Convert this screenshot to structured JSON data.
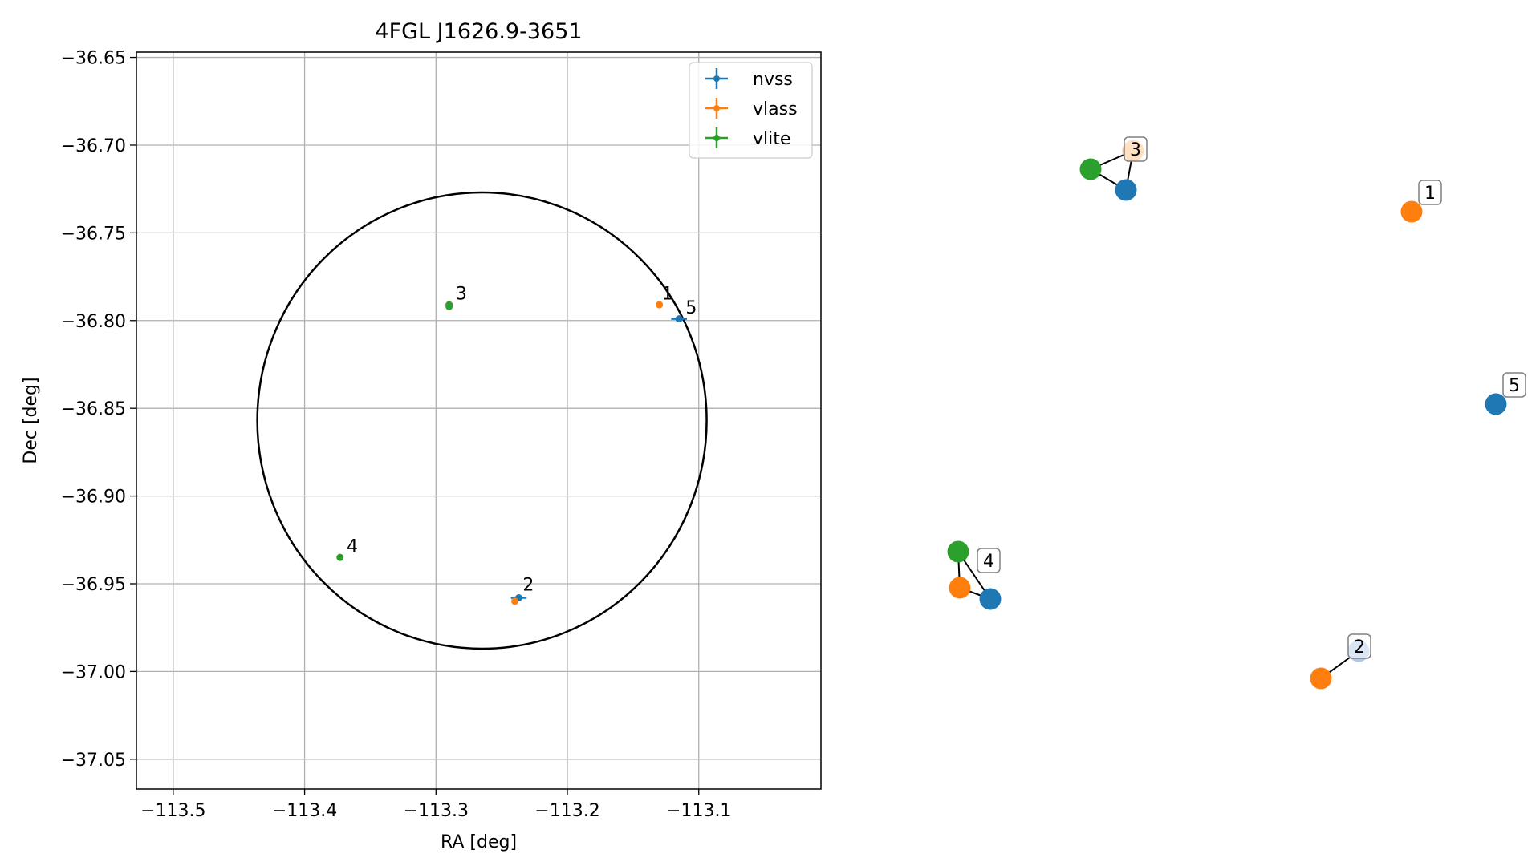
{
  "chart_data": [
    {
      "type": "scatter",
      "title": "4FGL J1626.9-3651",
      "xlabel": "RA [deg]",
      "ylabel": "Dec [deg]",
      "xlim": [
        -113.528,
        -113.007
      ],
      "ylim": [
        -37.067,
        -36.647
      ],
      "x_ticks": [
        -113.5,
        -113.4,
        -113.3,
        -113.2,
        -113.1
      ],
      "x_tick_labels": [
        "−113.5",
        "−113.4",
        "−113.3",
        "−113.2",
        "−113.1"
      ],
      "y_ticks": [
        -36.65,
        -36.7,
        -36.75,
        -36.8,
        -36.85,
        -36.9,
        -36.95,
        -37.0,
        -37.05
      ],
      "y_tick_labels": [
        "−36.65",
        "−36.70",
        "−36.75",
        "−36.80",
        "−36.85",
        "−36.90",
        "−36.95",
        "−37.00",
        "−37.05"
      ],
      "grid": true,
      "legend_position": "top-right",
      "series": [
        {
          "name": "nvss",
          "color": "#1f77b4",
          "points": [
            {
              "x": -113.237,
              "y": -36.958,
              "xerr": 0.006,
              "yerr": 0.001
            },
            {
              "x": -113.115,
              "y": -36.799,
              "xerr": 0.006,
              "yerr": 0.001
            }
          ]
        },
        {
          "name": "vlass",
          "color": "#ff7f0e",
          "points": [
            {
              "x": -113.13,
              "y": -36.791
            },
            {
              "x": -113.24,
              "y": -36.96
            }
          ]
        },
        {
          "name": "vlite",
          "color": "#2ca02c",
          "points": [
            {
              "x": -113.29,
              "y": -36.791
            },
            {
              "x": -113.29,
              "y": -36.792
            },
            {
              "x": -113.373,
              "y": -36.935
            }
          ]
        }
      ],
      "region": {
        "shape": "ellipse",
        "center_x": -113.265,
        "center_y": -36.857,
        "ra_halfwidth": 0.171,
        "dec_halfheight": 0.13,
        "color": "#000000"
      },
      "annotations": [
        {
          "text": "1",
          "x": -113.128,
          "y": -36.788
        },
        {
          "text": "2",
          "x": -113.234,
          "y": -36.954
        },
        {
          "text": "3",
          "x": -113.285,
          "y": -36.788
        },
        {
          "text": "4",
          "x": -113.368,
          "y": -36.932
        },
        {
          "text": "5",
          "x": -113.11,
          "y": -36.796
        }
      ]
    },
    {
      "type": "network",
      "nodes": [
        {
          "id": "n3-vlite",
          "color": "#2ca02c"
        },
        {
          "id": "n3-nvss",
          "color": "#1f77b4"
        },
        {
          "id": "n3-vlass",
          "color": "#ffbb78",
          "label": "3"
        },
        {
          "id": "n1-vlass",
          "color": "#ff7f0e",
          "label": "1"
        },
        {
          "id": "n5-nvss",
          "color": "#1f77b4",
          "label": "5"
        },
        {
          "id": "n4-vlite",
          "color": "#2ca02c"
        },
        {
          "id": "n4-vlass",
          "color": "#ff7f0e"
        },
        {
          "id": "n4-nvss",
          "color": "#1f77b4",
          "label": "4"
        },
        {
          "id": "n2-nvss",
          "color": "#aec7e8",
          "label": "2"
        },
        {
          "id": "n2-vlass",
          "color": "#ff7f0e"
        }
      ],
      "edges": [
        [
          "n3-vlite",
          "n3-vlass"
        ],
        [
          "n3-vlite",
          "n3-nvss"
        ],
        [
          "n3-nvss",
          "n3-vlass"
        ],
        [
          "n4-vlite",
          "n4-vlass"
        ],
        [
          "n4-vlite",
          "n4-nvss"
        ],
        [
          "n4-vlass",
          "n4-nvss"
        ],
        [
          "n2-vlass",
          "n2-nvss"
        ]
      ]
    }
  ]
}
